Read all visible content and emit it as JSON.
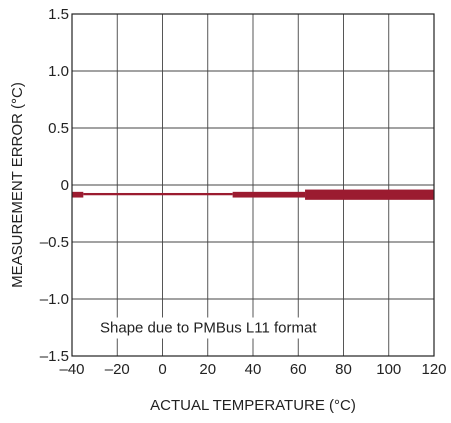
{
  "chart_data": {
    "type": "line",
    "title": "",
    "xlabel": "ACTUAL TEMPERATURE (°C)",
    "ylabel": "MEASUREMENT ERROR (°C)",
    "xlim": [
      -40,
      120
    ],
    "ylim": [
      -1.5,
      1.5
    ],
    "x_ticks": [
      -40,
      -20,
      0,
      20,
      40,
      60,
      80,
      100,
      120
    ],
    "x_tick_labels": [
      "–40",
      "–20",
      "0",
      "20",
      "40",
      "60",
      "80",
      "100",
      "120"
    ],
    "y_ticks": [
      1.5,
      1.0,
      0.5,
      0,
      -0.5,
      -1.0,
      -1.5
    ],
    "y_tick_labels": [
      "1.5",
      "1.0",
      "0.5",
      "0",
      "–0.5",
      "–1.0",
      "–1.5"
    ],
    "grid": true,
    "annotation": "Shape due to PMBus L11 format",
    "series_color": "#9b1b30",
    "series": [
      {
        "name": "",
        "bands": [
          {
            "x": [
              -40,
              -35
            ],
            "y_low": -0.11,
            "y_high": -0.06
          },
          {
            "x": [
              -35,
              31
            ],
            "y_low": -0.09,
            "y_high": -0.07
          },
          {
            "x": [
              31,
              63
            ],
            "y_low": -0.11,
            "y_high": -0.06
          },
          {
            "x": [
              63,
              120
            ],
            "y_low": -0.13,
            "y_high": -0.04
          }
        ]
      }
    ]
  }
}
